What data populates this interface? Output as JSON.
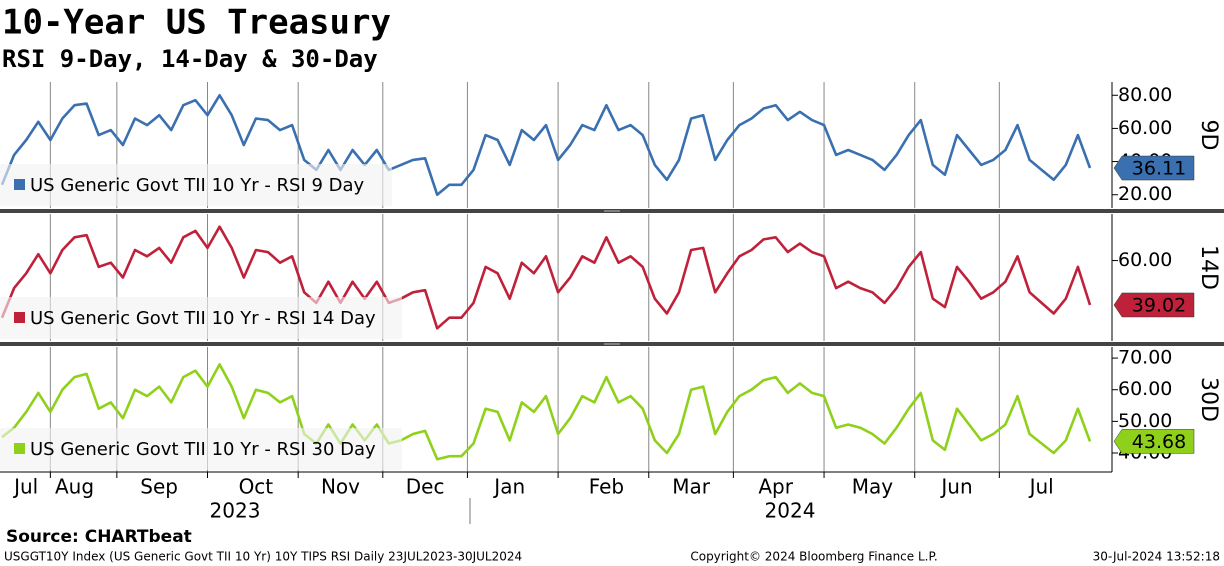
{
  "title": "10-Year US Treasury",
  "subtitle": "RSI 9-Day, 14-Day & 30-Day",
  "source": "Source: CHARTbeat",
  "footer_left": "USGGT10Y Index (US Generic Govt TII 10 Yr) 10Y TIPS RSI  Daily 23JUL2023-30JUL2024",
  "footer_center": "Copyright© 2024 Bloomberg Finance L.P.",
  "footer_right": "30-Jul-2024 13:52:18",
  "years": [
    "2023",
    "2024"
  ],
  "chart_data": [
    {
      "type": "line",
      "panel_label": "9D",
      "ylim": [
        12,
        88
      ],
      "yticks": [
        {
          "value": 20,
          "label": "20.00"
        },
        {
          "value": 40,
          "label": "40.00"
        },
        {
          "value": 60,
          "label": "60.00"
        },
        {
          "value": 80,
          "label": "80.00"
        }
      ],
      "series": [
        {
          "name": "US Generic Govt TII 10 Yr - RSI 9 Day",
          "color": "#3a70b0",
          "values": [
            26,
            44,
            53,
            64,
            53,
            66,
            74,
            75,
            56,
            59,
            50,
            66,
            62,
            68,
            59,
            74,
            77,
            68,
            80,
            68,
            50,
            66,
            65,
            59,
            62,
            41,
            35,
            47,
            35,
            47,
            38,
            47,
            35,
            38,
            41,
            42,
            20,
            26,
            26,
            35,
            56,
            53,
            38,
            59,
            53,
            62,
            41,
            50,
            62,
            59,
            74,
            59,
            62,
            56,
            38,
            29,
            41,
            66,
            68,
            41,
            53,
            62,
            66,
            72,
            74,
            65,
            70,
            65,
            62,
            44,
            47,
            44,
            41,
            35,
            44,
            56,
            65,
            38,
            32,
            56,
            47,
            38,
            41,
            47,
            62,
            41,
            35,
            29,
            38,
            56,
            36.11
          ]
        }
      ]
    },
    {
      "type": "line",
      "panel_label": "14D",
      "ylim": [
        22,
        82
      ],
      "yticks": [
        {
          "value": 60,
          "label": "60.00"
        }
      ],
      "series": [
        {
          "name": "US Generic Govt TII 10 Yr - RSI 14 Day",
          "color": "#c0213a",
          "values": [
            33,
            47,
            54,
            63,
            54,
            65,
            71,
            72,
            57,
            59,
            52,
            65,
            62,
            66,
            59,
            71,
            74,
            66,
            76,
            66,
            52,
            65,
            64,
            59,
            62,
            45,
            40,
            50,
            40,
            50,
            42,
            50,
            40,
            42,
            45,
            46,
            28,
            33,
            33,
            40,
            57,
            54,
            42,
            59,
            54,
            62,
            45,
            52,
            62,
            59,
            71,
            59,
            62,
            57,
            42,
            35,
            45,
            65,
            66,
            45,
            54,
            62,
            65,
            70,
            71,
            64,
            68,
            64,
            62,
            47,
            50,
            47,
            45,
            40,
            47,
            57,
            64,
            42,
            38,
            57,
            50,
            42,
            45,
            50,
            62,
            45,
            40,
            35,
            42,
            57,
            39.02
          ]
        }
      ]
    },
    {
      "type": "line",
      "panel_label": "30D",
      "ylim": [
        34,
        73.5
      ],
      "yticks": [
        {
          "value": 40,
          "label": "40.00"
        },
        {
          "value": 50,
          "label": "50.00"
        },
        {
          "value": 60,
          "label": "60.00"
        },
        {
          "value": 70,
          "label": "70.00"
        }
      ],
      "series": [
        {
          "name": "US Generic Govt TII 10 Yr - RSI 30 Day",
          "color": "#8fd11a",
          "values": [
            45,
            48,
            53,
            59,
            53,
            60,
            64,
            65,
            54,
            56,
            51,
            60,
            58,
            61,
            56,
            64,
            66,
            61,
            68,
            61,
            51,
            60,
            59,
            56,
            58,
            46,
            43,
            49,
            43,
            49,
            44,
            49,
            43,
            44,
            46,
            47,
            38,
            39,
            39,
            43,
            54,
            53,
            44,
            56,
            53,
            58,
            46,
            51,
            58,
            56,
            64,
            56,
            58,
            54,
            44,
            40,
            46,
            60,
            61,
            46,
            53,
            58,
            60,
            63,
            64,
            59,
            62,
            59,
            58,
            48,
            49,
            48,
            46,
            43,
            48,
            54,
            59,
            44,
            41,
            54,
            49,
            44,
            46,
            49,
            58,
            46,
            43,
            40,
            44,
            54,
            43.68
          ]
        }
      ],
      "categories": [
        null,
        null,
        "Jul",
        null,
        null,
        null,
        "Aug",
        null,
        null,
        null,
        null,
        null,
        null,
        "Sep",
        null,
        null,
        null,
        null,
        null,
        null,
        null,
        "Oct",
        null,
        null,
        null,
        null,
        null,
        null,
        "Nov",
        null,
        null,
        null,
        null,
        null,
        null,
        "Dec",
        null,
        null,
        null,
        null,
        null,
        null,
        "Jan",
        null,
        null,
        null,
        null,
        null,
        null,
        null,
        "Feb",
        null,
        null,
        null,
        null,
        null,
        null,
        "Mar",
        null,
        null,
        null,
        null,
        null,
        null,
        "Apr",
        null,
        null,
        null,
        null,
        null,
        null,
        null,
        "May",
        null,
        null,
        null,
        null,
        null,
        null,
        "Jun",
        null,
        null,
        null,
        null,
        null,
        null,
        "Jul",
        null,
        null,
        null,
        null
      ]
    }
  ]
}
